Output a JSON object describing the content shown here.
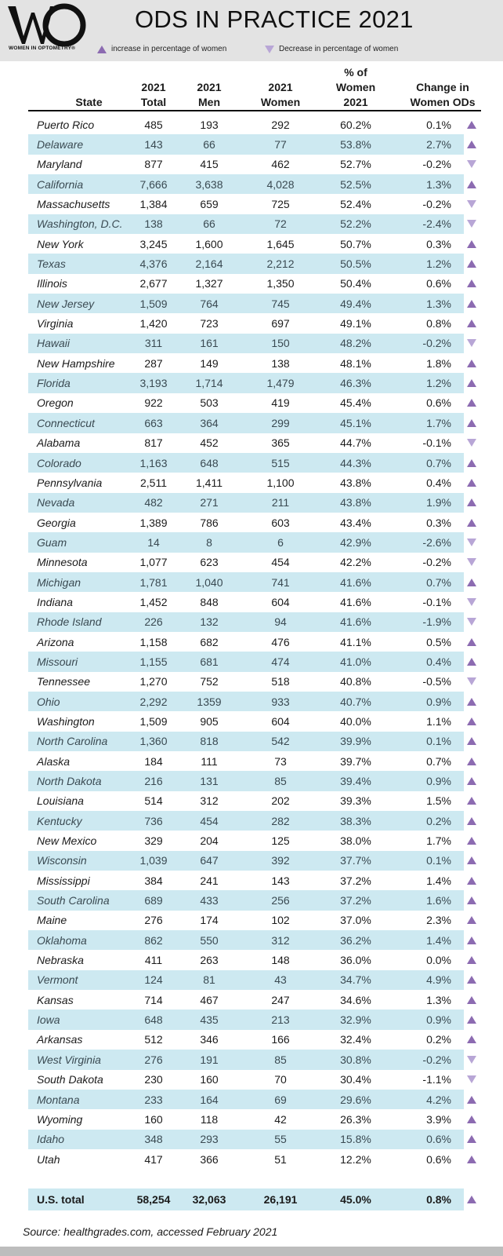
{
  "header": {
    "logo_org": "WOMEN IN OPTOMETRY®",
    "title": "ODS IN PRACTICE 2021",
    "legend_increase": "increase in percentage of women",
    "legend_decrease": "Decrease in percentage of women"
  },
  "columns": {
    "state": "State",
    "total": [
      "2021",
      "Total"
    ],
    "men": [
      "2021",
      "Men"
    ],
    "women": [
      "2021",
      "Women"
    ],
    "pct": [
      "% of",
      "Women",
      "2021"
    ],
    "change": [
      "Change in",
      "Women ODs"
    ]
  },
  "colors": {
    "band": "#cde9f1",
    "increase": "#8c6bb1",
    "decrease": "#b8a6d6",
    "header_bg": "#e3e3e3"
  },
  "rows": [
    {
      "state": "Puerto Rico",
      "total": "485",
      "men": "193",
      "women": "292",
      "pct": "60.2%",
      "change": "0.1%",
      "dir": "up"
    },
    {
      "state": "Delaware",
      "total": "143",
      "men": "66",
      "women": "77",
      "pct": "53.8%",
      "change": "2.7%",
      "dir": "up"
    },
    {
      "state": "Maryland",
      "total": "877",
      "men": "415",
      "women": "462",
      "pct": "52.7%",
      "change": "-0.2%",
      "dir": "down"
    },
    {
      "state": "California",
      "total": "7,666",
      "men": "3,638",
      "women": "4,028",
      "pct": "52.5%",
      "change": "1.3%",
      "dir": "up"
    },
    {
      "state": "Massachusetts",
      "total": "1,384",
      "men": "659",
      "women": "725",
      "pct": "52.4%",
      "change": "-0.2%",
      "dir": "down"
    },
    {
      "state": "Washington, D.C.",
      "total": "138",
      "men": "66",
      "women": "72",
      "pct": "52.2%",
      "change": "-2.4%",
      "dir": "down"
    },
    {
      "state": "New York",
      "total": "3,245",
      "men": "1,600",
      "women": "1,645",
      "pct": "50.7%",
      "change": "0.3%",
      "dir": "up"
    },
    {
      "state": "Texas",
      "total": "4,376",
      "men": "2,164",
      "women": "2,212",
      "pct": "50.5%",
      "change": "1.2%",
      "dir": "up"
    },
    {
      "state": "Illinois",
      "total": "2,677",
      "men": "1,327",
      "women": "1,350",
      "pct": "50.4%",
      "change": "0.6%",
      "dir": "up"
    },
    {
      "state": "New Jersey",
      "total": "1,509",
      "men": "764",
      "women": "745",
      "pct": "49.4%",
      "change": "1.3%",
      "dir": "up"
    },
    {
      "state": "Virginia",
      "total": "1,420",
      "men": "723",
      "women": "697",
      "pct": "49.1%",
      "change": "0.8%",
      "dir": "up"
    },
    {
      "state": "Hawaii",
      "total": "311",
      "men": "161",
      "women": "150",
      "pct": "48.2%",
      "change": "-0.2%",
      "dir": "down"
    },
    {
      "state": "New Hampshire",
      "total": "287",
      "men": "149",
      "women": "138",
      "pct": "48.1%",
      "change": "1.8%",
      "dir": "up"
    },
    {
      "state": "Florida",
      "total": "3,193",
      "men": "1,714",
      "women": "1,479",
      "pct": "46.3%",
      "change": "1.2%",
      "dir": "up"
    },
    {
      "state": "Oregon",
      "total": "922",
      "men": "503",
      "women": "419",
      "pct": "45.4%",
      "change": "0.6%",
      "dir": "up"
    },
    {
      "state": "Connecticut",
      "total": "663",
      "men": "364",
      "women": "299",
      "pct": "45.1%",
      "change": "1.7%",
      "dir": "up"
    },
    {
      "state": "Alabama",
      "total": "817",
      "men": "452",
      "women": "365",
      "pct": "44.7%",
      "change": "-0.1%",
      "dir": "down"
    },
    {
      "state": "Colorado",
      "total": "1,163",
      "men": "648",
      "women": "515",
      "pct": "44.3%",
      "change": "0.7%",
      "dir": "up"
    },
    {
      "state": "Pennsylvania",
      "total": "2,511",
      "men": "1,411",
      "women": "1,100",
      "pct": "43.8%",
      "change": "0.4%",
      "dir": "up"
    },
    {
      "state": "Nevada",
      "total": "482",
      "men": "271",
      "women": "211",
      "pct": "43.8%",
      "change": "1.9%",
      "dir": "up"
    },
    {
      "state": "Georgia",
      "total": "1,389",
      "men": "786",
      "women": "603",
      "pct": "43.4%",
      "change": "0.3%",
      "dir": "up"
    },
    {
      "state": "Guam",
      "total": "14",
      "men": "8",
      "women": "6",
      "pct": "42.9%",
      "change": "-2.6%",
      "dir": "down"
    },
    {
      "state": "Minnesota",
      "total": "1,077",
      "men": "623",
      "women": "454",
      "pct": "42.2%",
      "change": "-0.2%",
      "dir": "down"
    },
    {
      "state": "Michigan",
      "total": "1,781",
      "men": "1,040",
      "women": "741",
      "pct": "41.6%",
      "change": "0.7%",
      "dir": "up"
    },
    {
      "state": "Indiana",
      "total": "1,452",
      "men": "848",
      "women": "604",
      "pct": "41.6%",
      "change": "-0.1%",
      "dir": "down"
    },
    {
      "state": "Rhode Island",
      "total": "226",
      "men": "132",
      "women": "94",
      "pct": "41.6%",
      "change": "-1.9%",
      "dir": "down"
    },
    {
      "state": "Arizona",
      "total": "1,158",
      "men": "682",
      "women": "476",
      "pct": "41.1%",
      "change": "0.5%",
      "dir": "up"
    },
    {
      "state": "Missouri",
      "total": "1,155",
      "men": "681",
      "women": "474",
      "pct": "41.0%",
      "change": "0.4%",
      "dir": "up"
    },
    {
      "state": "Tennessee",
      "total": "1,270",
      "men": "752",
      "women": "518",
      "pct": "40.8%",
      "change": "-0.5%",
      "dir": "down"
    },
    {
      "state": "Ohio",
      "total": "2,292",
      "men": "1359",
      "women": "933",
      "pct": "40.7%",
      "change": "0.9%",
      "dir": "up"
    },
    {
      "state": "Washington",
      "total": "1,509",
      "men": "905",
      "women": "604",
      "pct": "40.0%",
      "change": "1.1%",
      "dir": "up"
    },
    {
      "state": "North Carolina",
      "total": "1,360",
      "men": "818",
      "women": "542",
      "pct": "39.9%",
      "change": "0.1%",
      "dir": "up"
    },
    {
      "state": "Alaska",
      "total": "184",
      "men": "111",
      "women": "73",
      "pct": "39.7%",
      "change": "0.7%",
      "dir": "up"
    },
    {
      "state": "North Dakota",
      "total": "216",
      "men": "131",
      "women": "85",
      "pct": "39.4%",
      "change": "0.9%",
      "dir": "up"
    },
    {
      "state": "Louisiana",
      "total": "514",
      "men": "312",
      "women": "202",
      "pct": "39.3%",
      "change": "1.5%",
      "dir": "up"
    },
    {
      "state": "Kentucky",
      "total": "736",
      "men": "454",
      "women": "282",
      "pct": "38.3%",
      "change": "0.2%",
      "dir": "up"
    },
    {
      "state": "New Mexico",
      "total": "329",
      "men": "204",
      "women": "125",
      "pct": "38.0%",
      "change": "1.7%",
      "dir": "up"
    },
    {
      "state": "Wisconsin",
      "total": "1,039",
      "men": "647",
      "women": "392",
      "pct": "37.7%",
      "change": "0.1%",
      "dir": "up"
    },
    {
      "state": "Mississippi",
      "total": "384",
      "men": "241",
      "women": "143",
      "pct": "37.2%",
      "change": "1.4%",
      "dir": "up"
    },
    {
      "state": "South Carolina",
      "total": "689",
      "men": "433",
      "women": "256",
      "pct": "37.2%",
      "change": "1.6%",
      "dir": "up"
    },
    {
      "state": "Maine",
      "total": "276",
      "men": "174",
      "women": "102",
      "pct": "37.0%",
      "change": "2.3%",
      "dir": "up"
    },
    {
      "state": "Oklahoma",
      "total": "862",
      "men": "550",
      "women": "312",
      "pct": "36.2%",
      "change": "1.4%",
      "dir": "up"
    },
    {
      "state": "Nebraska",
      "total": "411",
      "men": "263",
      "women": "148",
      "pct": "36.0%",
      "change": "0.0%",
      "dir": "up"
    },
    {
      "state": "Vermont",
      "total": "124",
      "men": "81",
      "women": "43",
      "pct": "34.7%",
      "change": "4.9%",
      "dir": "up"
    },
    {
      "state": "Kansas",
      "total": "714",
      "men": "467",
      "women": "247",
      "pct": "34.6%",
      "change": "1.3%",
      "dir": "up"
    },
    {
      "state": "Iowa",
      "total": "648",
      "men": "435",
      "women": "213",
      "pct": "32.9%",
      "change": "0.9%",
      "dir": "up"
    },
    {
      "state": "Arkansas",
      "total": "512",
      "men": "346",
      "women": "166",
      "pct": "32.4%",
      "change": "0.2%",
      "dir": "up"
    },
    {
      "state": "West Virginia",
      "total": "276",
      "men": "191",
      "women": "85",
      "pct": "30.8%",
      "change": "-0.2%",
      "dir": "down"
    },
    {
      "state": "South Dakota",
      "total": "230",
      "men": "160",
      "women": "70",
      "pct": "30.4%",
      "change": "-1.1%",
      "dir": "down"
    },
    {
      "state": "Montana",
      "total": "233",
      "men": "164",
      "women": "69",
      "pct": "29.6%",
      "change": "4.2%",
      "dir": "up"
    },
    {
      "state": "Wyoming",
      "total": "160",
      "men": "118",
      "women": "42",
      "pct": "26.3%",
      "change": "3.9%",
      "dir": "up"
    },
    {
      "state": "Idaho",
      "total": "348",
      "men": "293",
      "women": "55",
      "pct": "15.8%",
      "change": "0.6%",
      "dir": "up"
    },
    {
      "state": "Utah",
      "total": "417",
      "men": "366",
      "women": "51",
      "pct": "12.2%",
      "change": "0.6%",
      "dir": "up"
    }
  ],
  "total": {
    "state": "U.S. total",
    "total": "58,254",
    "men": "32,063",
    "women": "26,191",
    "pct": "45.0%",
    "change": "0.8%",
    "dir": "up"
  },
  "source": "Source: healthgrades.com, accessed February 2021"
}
